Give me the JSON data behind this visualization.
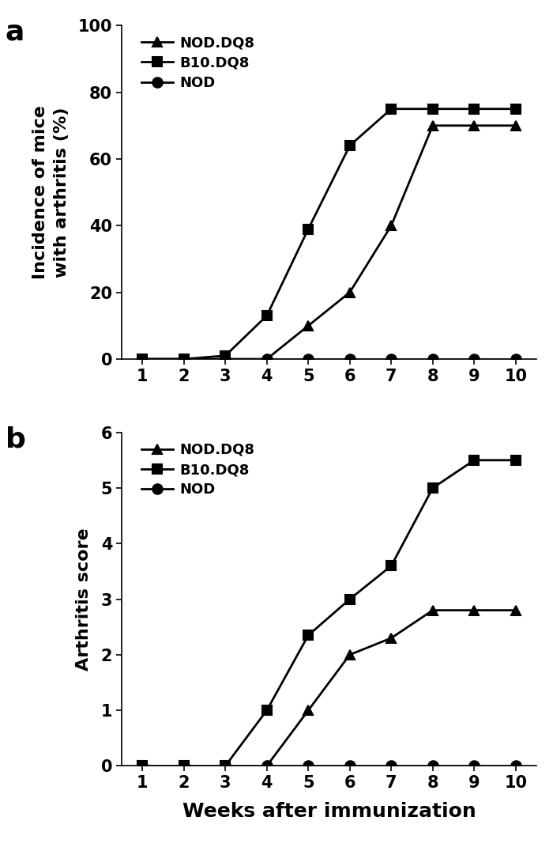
{
  "weeks": [
    1,
    2,
    3,
    4,
    5,
    6,
    7,
    8,
    9,
    10
  ],
  "panel_a": {
    "title_label": "a",
    "ylabel": "Incidence of mice\nwith arthritis (%)",
    "ylim": [
      0,
      100
    ],
    "yticks": [
      0,
      20,
      40,
      60,
      80,
      100
    ],
    "series_order": [
      "NOD.DQ8",
      "B10.DQ8",
      "NOD"
    ],
    "series": {
      "NOD.DQ8": {
        "values": [
          0,
          0,
          0,
          0,
          10,
          20,
          40,
          70,
          70,
          70
        ],
        "marker": "^",
        "label": "NOD.DQ8"
      },
      "B10.DQ8": {
        "values": [
          0,
          0,
          1,
          13,
          39,
          64,
          75,
          75,
          75,
          75
        ],
        "marker": "s",
        "label": "B10.DQ8"
      },
      "NOD": {
        "values": [
          0,
          0,
          0,
          0,
          0,
          0,
          0,
          0,
          0,
          0
        ],
        "marker": "o",
        "label": "NOD"
      }
    }
  },
  "panel_b": {
    "title_label": "b",
    "ylabel": "Arthritis score",
    "xlabel": "Weeks after immunization",
    "ylim": [
      0,
      6
    ],
    "yticks": [
      0,
      1,
      2,
      3,
      4,
      5,
      6
    ],
    "series_order": [
      "NOD.DQ8",
      "B10.DQ8",
      "NOD"
    ],
    "series": {
      "NOD.DQ8": {
        "values": [
          0,
          0,
          0,
          0,
          1.0,
          2.0,
          2.3,
          2.8,
          2.8,
          2.8
        ],
        "marker": "^",
        "label": "NOD.DQ8"
      },
      "B10.DQ8": {
        "values": [
          0,
          0,
          0,
          1.0,
          2.35,
          3.0,
          3.6,
          5.0,
          5.5,
          5.5
        ],
        "marker": "s",
        "label": "B10.DQ8"
      },
      "NOD": {
        "values": [
          0,
          0,
          0,
          0,
          0,
          0,
          0,
          0,
          0,
          0
        ],
        "marker": "o",
        "label": "NOD"
      }
    }
  },
  "line_color": "#000000",
  "marker_size": 9,
  "linewidth": 2.0,
  "legend_fontsize": 13,
  "tick_fontsize": 15,
  "label_fontsize": 16,
  "xlabel_fontsize": 18,
  "panel_label_fontsize": 26,
  "font_weight": "bold"
}
